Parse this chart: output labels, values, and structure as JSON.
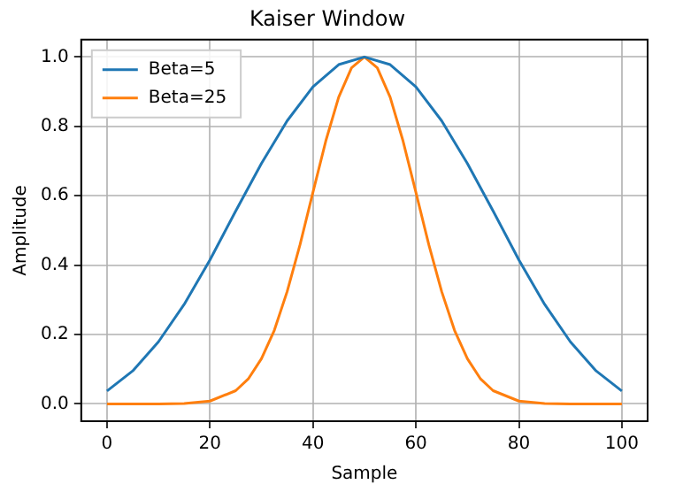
{
  "chart_data": {
    "type": "line",
    "title": "Kaiser Window",
    "xlabel": "Sample",
    "ylabel": "Amplitude",
    "xlim": [
      -5,
      105
    ],
    "xticks": [
      0,
      20,
      40,
      60,
      80,
      100
    ],
    "ylim": [
      -0.05,
      1.05
    ],
    "yticks": [
      {
        "value": 0,
        "label": "0.0"
      },
      {
        "value": 0.2,
        "label": "0.2"
      },
      {
        "value": 0.4,
        "label": "0.4"
      },
      {
        "value": 0.6,
        "label": "0.6"
      },
      {
        "value": 0.8,
        "label": "0.8"
      },
      {
        "value": 1,
        "label": "1.0"
      }
    ],
    "grid": true,
    "legend": "top left",
    "series": [
      {
        "name": "Beta=5",
        "color": "#1f77b4",
        "x": [
          0,
          5,
          10,
          15,
          20,
          25,
          30,
          35,
          40,
          45,
          50,
          55,
          60,
          65,
          70,
          75,
          80,
          85,
          90,
          95,
          100
        ],
        "values": [
          0.037,
          0.095,
          0.179,
          0.287,
          0.415,
          0.556,
          0.693,
          0.816,
          0.914,
          0.978,
          1,
          0.978,
          0.914,
          0.816,
          0.693,
          0.556,
          0.415,
          0.287,
          0.179,
          0.095,
          0.037
        ]
      },
      {
        "name": "Beta=25",
        "color": "#ff7f0e",
        "x": [
          0,
          10,
          15,
          20,
          25,
          27.5,
          30,
          32.5,
          35,
          37.5,
          40,
          42.5,
          45,
          47.5,
          50,
          52.5,
          55,
          57.5,
          60,
          62.5,
          65,
          67.5,
          70,
          72.5,
          75,
          80,
          85,
          90,
          100
        ],
        "values": [
          0,
          0,
          0.001,
          0.008,
          0.038,
          0.073,
          0.13,
          0.212,
          0.324,
          0.459,
          0.61,
          0.758,
          0.884,
          0.969,
          1,
          0.969,
          0.884,
          0.758,
          0.61,
          0.459,
          0.324,
          0.212,
          0.13,
          0.073,
          0.038,
          0.008,
          0.001,
          0,
          0
        ]
      }
    ]
  }
}
